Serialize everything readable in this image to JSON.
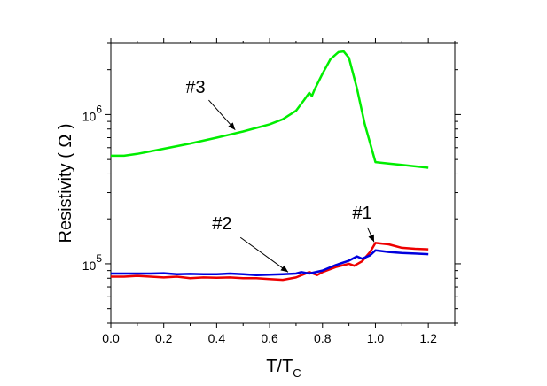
{
  "chart_data": {
    "type": "line",
    "xlabel_main": "T/T",
    "xlabel_sub": "C",
    "ylabel": "Resistivity ( Ω )",
    "xlim": [
      0.0,
      1.3
    ],
    "ylim": [
      40000,
      3000000
    ],
    "yscale": "log",
    "grid": false,
    "legend": "none",
    "x_ticks": [
      "0.0",
      "0.2",
      "0.4",
      "0.6",
      "0.8",
      "1.0",
      "1.2"
    ],
    "y_ticks": [
      {
        "base": "10",
        "exp": "5",
        "value": 100000
      },
      {
        "base": "10",
        "exp": "6",
        "value": 1000000
      }
    ],
    "series": [
      {
        "color": "#00ee00",
        "x": [
          0.0,
          0.05,
          0.1,
          0.2,
          0.3,
          0.4,
          0.5,
          0.6,
          0.65,
          0.7,
          0.73,
          0.75,
          0.76,
          0.77,
          0.8,
          0.83,
          0.86,
          0.88,
          0.9,
          0.93,
          0.96,
          1.0,
          1.05,
          1.1,
          1.15,
          1.2
        ],
        "y": [
          530000,
          530000,
          545000,
          590000,
          640000,
          700000,
          770000,
          860000,
          930000,
          1060000,
          1250000,
          1400000,
          1330000,
          1470000,
          1880000,
          2350000,
          2620000,
          2650000,
          2400000,
          1500000,
          860000,
          480000,
          470000,
          460000,
          450000,
          440000
        ]
      },
      {
        "color": "#ee0000",
        "x": [
          0.0,
          0.05,
          0.1,
          0.15,
          0.2,
          0.25,
          0.3,
          0.35,
          0.4,
          0.45,
          0.5,
          0.55,
          0.6,
          0.65,
          0.7,
          0.75,
          0.78,
          0.8,
          0.85,
          0.9,
          0.92,
          0.95,
          0.98,
          1.0,
          1.05,
          1.1,
          1.15,
          1.2
        ],
        "y": [
          82000,
          82000,
          83000,
          82000,
          81000,
          82000,
          80000,
          81000,
          80500,
          81000,
          80000,
          80000,
          79000,
          78000,
          81000,
          88000,
          84000,
          88000,
          95000,
          100000,
          97000,
          104000,
          120000,
          138000,
          135000,
          128000,
          126000,
          125000
        ]
      },
      {
        "color": "#0000dd",
        "x": [
          0.0,
          0.05,
          0.1,
          0.15,
          0.2,
          0.25,
          0.3,
          0.35,
          0.4,
          0.45,
          0.5,
          0.55,
          0.6,
          0.65,
          0.7,
          0.72,
          0.75,
          0.8,
          0.85,
          0.9,
          0.93,
          0.95,
          0.98,
          1.0,
          1.05,
          1.1,
          1.15,
          1.2
        ],
        "y": [
          86000,
          86000,
          86000,
          86000,
          86500,
          85000,
          85500,
          85000,
          85000,
          86000,
          85000,
          84000,
          84500,
          85000,
          86000,
          88000,
          86000,
          90000,
          98000,
          105000,
          112000,
          108000,
          114000,
          123000,
          120000,
          118000,
          117000,
          116000
        ]
      }
    ],
    "annotations": [
      {
        "label": "#3",
        "series_index": 0,
        "text_at": [
          0.32,
          1400000
        ],
        "arrow_from": [
          0.37,
          1250000
        ],
        "arrow_to": [
          0.47,
          790000
        ]
      },
      {
        "label": "#2",
        "series_index": 2,
        "text_at": [
          0.42,
          170000
        ],
        "arrow_from": [
          0.49,
          150000
        ],
        "arrow_to": [
          0.67,
          88000
        ]
      },
      {
        "label": "#1",
        "series_index": 1,
        "text_at": [
          0.95,
          200000
        ],
        "arrow_from": [
          0.97,
          175000
        ],
        "arrow_to": [
          0.995,
          140000
        ]
      }
    ]
  }
}
